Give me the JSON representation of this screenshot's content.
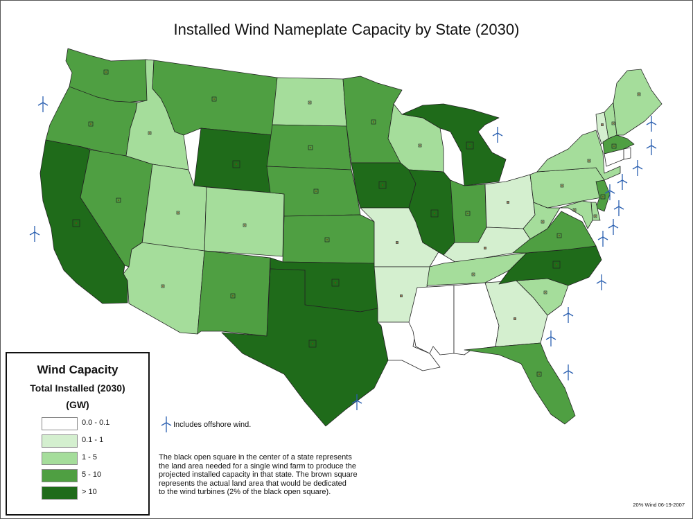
{
  "title": "Installed Wind Nameplate Capacity by State (2030)",
  "legend": {
    "title_line1": "Wind Capacity",
    "title_line2": "Total Installed (2030)",
    "unit": "(GW)",
    "classes": [
      {
        "label": "0.0 - 0.1",
        "color": "#ffffff"
      },
      {
        "label": "0.1 - 1",
        "color": "#d4efcf"
      },
      {
        "label": "1 - 5",
        "color": "#a5dd9b"
      },
      {
        "label": "5 - 10",
        "color": "#4f9f42"
      },
      {
        "label": "> 10",
        "color": "#1f6b1a"
      }
    ]
  },
  "offshore_note": "Includes offshore wind.",
  "description": "The black open square in the center of a state represents\nthe land area needed for a single wind farm to produce the\nprojected installed capacity in that state. The brown square\nrepresents the actual land area that would be dedicated\nto the wind turbines (2% of the black open square).",
  "credit": "20% Wind 06-19-2007",
  "state_classes": {
    "WA": 3,
    "OR": 3,
    "CA": 4,
    "NV": 3,
    "ID": 2,
    "MT": 3,
    "WY": 4,
    "UT": 2,
    "AZ": 2,
    "CO": 2,
    "NM": 3,
    "ND": 2,
    "SD": 3,
    "NE": 3,
    "KS": 3,
    "OK": 4,
    "TX": 4,
    "MN": 3,
    "IA": 4,
    "MO": 1,
    "AR": 1,
    "LA": 0,
    "WI": 2,
    "IL": 4,
    "MI": 4,
    "IN": 3,
    "OH": 1,
    "KY": 1,
    "TN": 2,
    "MS": 0,
    "AL": 0,
    "GA": 1,
    "FL": 3,
    "SC": 2,
    "NC": 4,
    "VA": 3,
    "WV": 2,
    "PA": 2,
    "NY": 2,
    "VT": 1,
    "NH": 2,
    "ME": 2,
    "MA": 3,
    "RI": 0,
    "CT": 0,
    "NJ": 3,
    "DE": 2,
    "MD": 2
  },
  "icons": {
    "turbine": "wind-turbine-icon"
  }
}
